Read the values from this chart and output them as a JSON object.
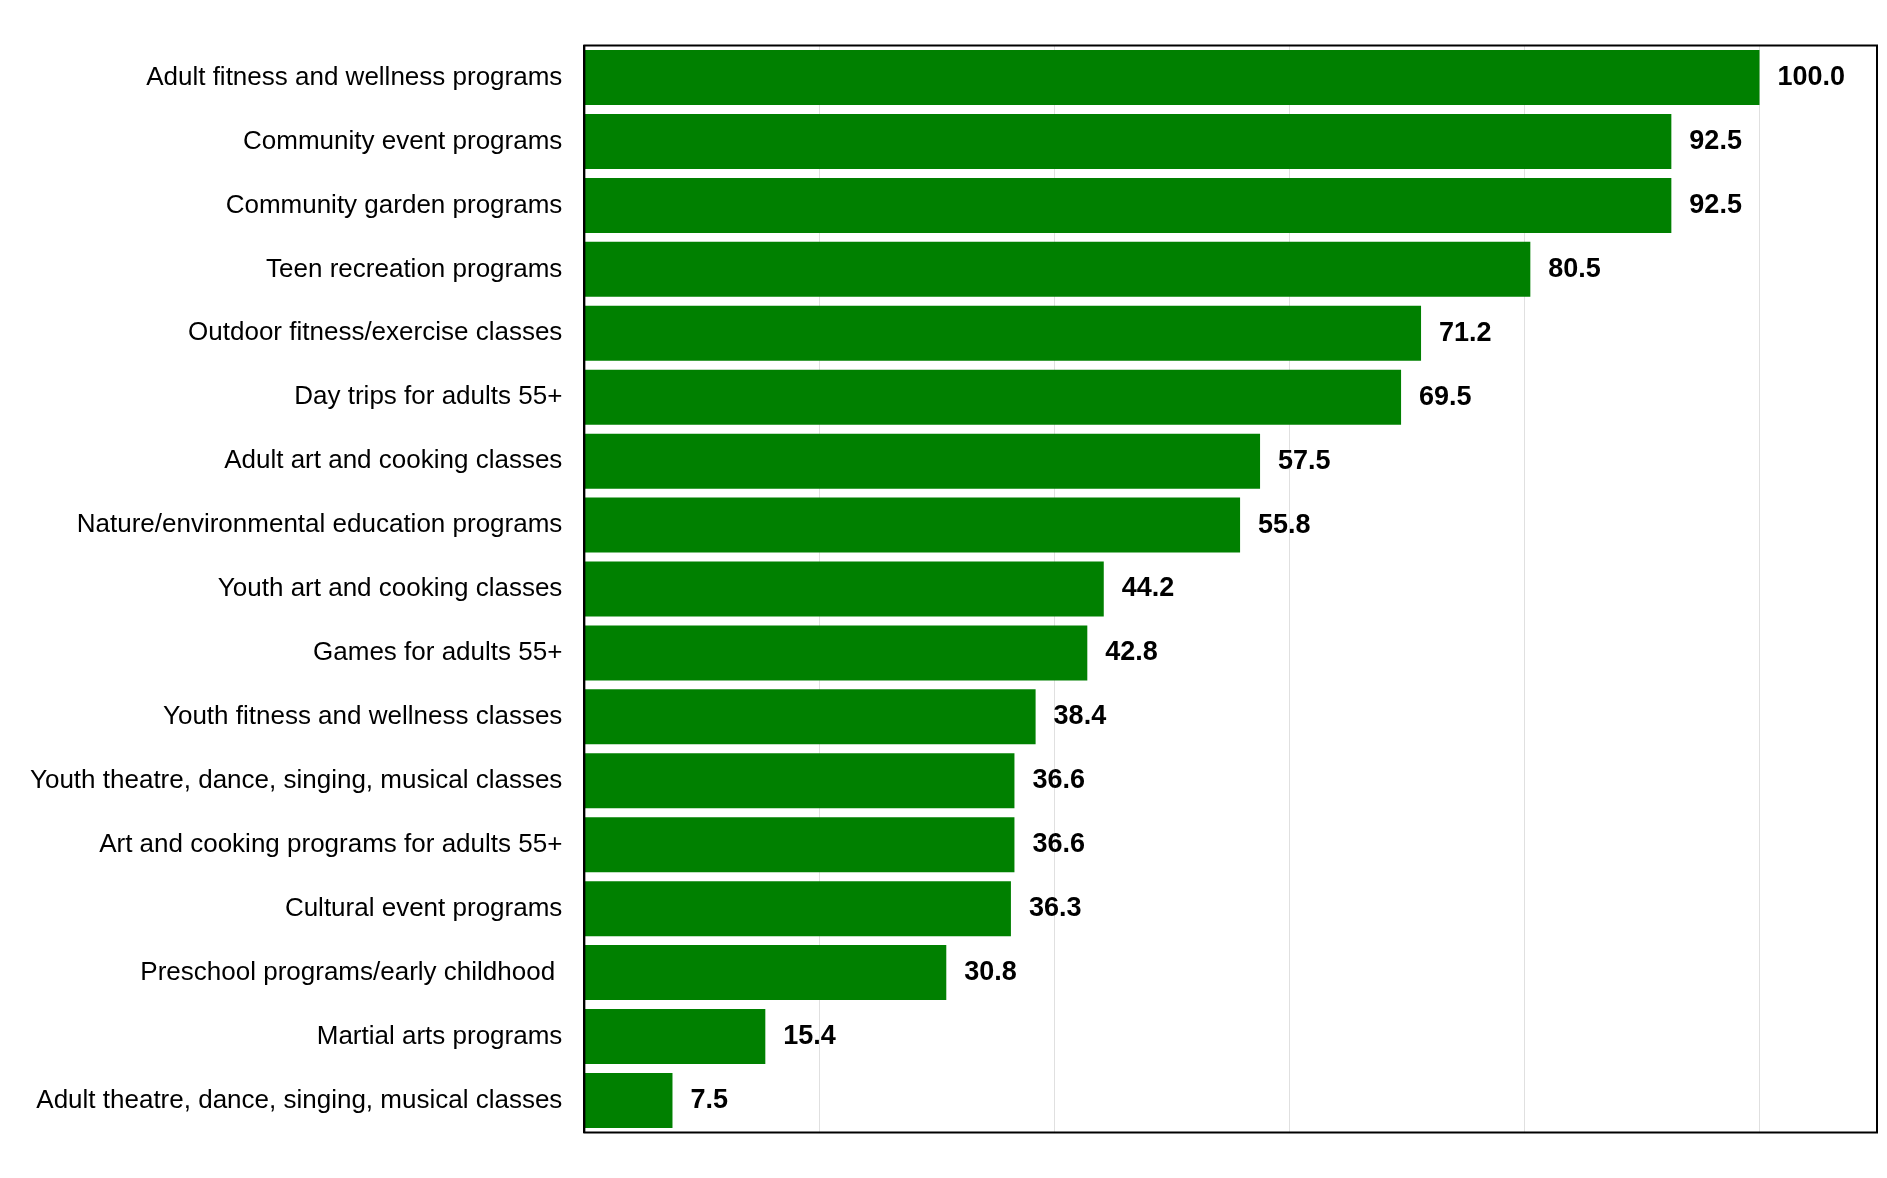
{
  "chart_data": {
    "type": "bar",
    "orientation": "horizontal",
    "categories": [
      "Adult fitness and wellness programs",
      "Community event programs",
      "Community garden programs",
      "Teen recreation programs",
      "Outdoor fitness/exercise classes",
      "Day trips for adults 55+",
      "Adult art and cooking classes",
      "Nature/environmental education programs",
      "Youth art and cooking classes",
      "Games for adults 55+",
      "Youth fitness and wellness classes",
      "Youth theatre, dance, singing, musical classes",
      "Art and cooking programs for adults 55+",
      "Cultural event programs",
      "Preschool programs/early childhood ",
      "Martial arts programs",
      "Adult theatre, dance, singing, musical classes"
    ],
    "values": [
      100.0,
      92.5,
      92.5,
      80.5,
      71.2,
      69.5,
      57.5,
      55.8,
      44.2,
      42.8,
      38.4,
      36.6,
      36.6,
      36.3,
      30.8,
      15.4,
      7.5
    ],
    "color": "#008000",
    "xlim": [
      0,
      110
    ],
    "xticks": [
      {
        "value": 0,
        "label": null
      },
      {
        "value": 20,
        "label": null
      },
      {
        "value": 40,
        "label": null
      },
      {
        "value": 60,
        "label": null
      },
      {
        "value": 80,
        "label": null
      },
      {
        "value": 100,
        "label": null
      }
    ],
    "value_labels": [
      "100.0",
      "92.5",
      "92.5",
      "80.5",
      "71.2",
      "69.5",
      "57.5",
      "55.8",
      "44.2",
      "42.8",
      "38.4",
      "36.6",
      "36.6",
      "36.3",
      "30.8",
      "15.4",
      "7.5"
    ],
    "grid": "x",
    "tick_labels": "y",
    "legend": false
  }
}
